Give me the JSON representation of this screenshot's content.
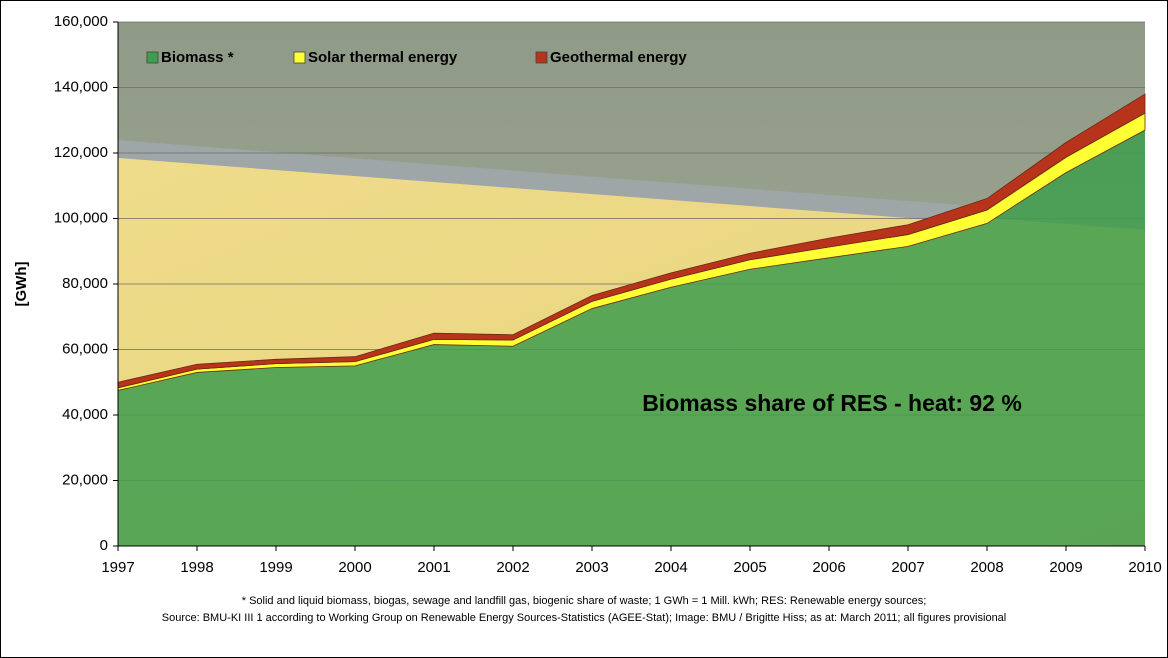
{
  "chart_data": {
    "type": "stacked-area",
    "y_label": "[GWh]",
    "annotation": "Biomass share of RES - heat: 92 %",
    "footnotes": [
      "* Solid and liquid biomass, biogas, sewage and landfill gas, biogenic share of waste; 1 GWh = 1 Mill. kWh; RES: Renewable energy sources;",
      "Source: BMU-KI III 1 according to Working Group on Renewable Energy Sources-Statistics (AGEE-Stat); Image: BMU / Brigitte Hiss; as at: March 2011; all figures provisional"
    ],
    "x": [
      1997,
      1998,
      1999,
      2000,
      2001,
      2002,
      2003,
      2004,
      2005,
      2006,
      2007,
      2008,
      2009,
      2010
    ],
    "xlim": [
      1997,
      2010
    ],
    "xticks": [
      1997,
      1998,
      1999,
      2000,
      2001,
      2002,
      2003,
      2004,
      2005,
      2006,
      2007,
      2008,
      2009,
      2010
    ],
    "ylim": [
      0,
      160000
    ],
    "yticks": [
      0,
      {
        "value": 20000,
        "label": "20,000"
      },
      {
        "value": 40000,
        "label": "40,000"
      },
      {
        "value": 60000,
        "label": "60,000"
      },
      {
        "value": 80000,
        "label": "80,000"
      },
      {
        "value": 100000,
        "label": "100,000"
      },
      {
        "value": 120000,
        "label": "120,000"
      },
      {
        "value": 140000,
        "label": "140,000"
      },
      {
        "value": 160000,
        "label": "160,000"
      }
    ],
    "grid": true,
    "series": [
      {
        "name": "Biomass *",
        "color": "#3f9e4e",
        "values": [
          47500,
          53000,
          54500,
          55000,
          61500,
          61000,
          72500,
          79000,
          84500,
          88000,
          91500,
          98500,
          114000,
          127000
        ]
      },
      {
        "name": "Solar thermal energy",
        "color": "#ffff33",
        "values": [
          800,
          1000,
          1200,
          1300,
          1600,
          1900,
          2200,
          2500,
          2900,
          3300,
          3600,
          4100,
          4700,
          5200
        ]
      },
      {
        "name": "Geothermal energy",
        "color": "#b8331c",
        "values": [
          1700,
          1500,
          1300,
          1500,
          1900,
          1600,
          1800,
          1900,
          2000,
          2700,
          3000,
          3500,
          4500,
          5800
        ]
      }
    ]
  }
}
